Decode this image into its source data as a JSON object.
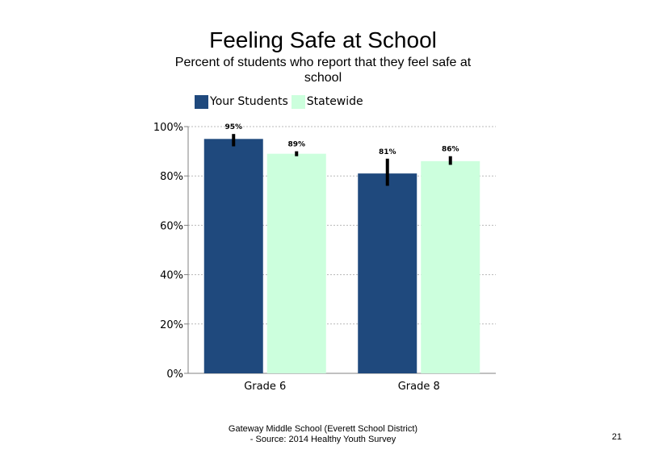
{
  "title": "Feeling Safe at School",
  "subtitle": "Percent of students  who report that they feel safe at school",
  "footer": {
    "line1": "Gateway Middle  School  (Everett School District)",
    "line2": "- Source: 2014 Healthy  Youth Survey"
  },
  "page_number": "21",
  "chart_data": {
    "type": "bar",
    "categories": [
      "Grade 6",
      "Grade 8"
    ],
    "series": [
      {
        "name": "Your Students",
        "color": "#1f497d",
        "values": [
          95,
          81
        ],
        "value_labels": [
          "95%",
          "81%"
        ],
        "error_low": [
          92,
          76
        ],
        "error_high": [
          97,
          87
        ]
      },
      {
        "name": "Statewide",
        "color": "#ccffdd",
        "values": [
          89,
          86
        ],
        "value_labels": [
          "89%",
          "86%"
        ],
        "error_low": [
          88,
          84.5
        ],
        "error_high": [
          90,
          88
        ]
      }
    ],
    "ylim": [
      0,
      100
    ],
    "yticks": [
      0,
      20,
      40,
      60,
      80,
      100
    ],
    "ytick_labels": [
      "0%",
      "20%",
      "40%",
      "60%",
      "80%",
      "100%"
    ],
    "grid": true,
    "legend_position": "top-left",
    "xlabel": "",
    "ylabel": ""
  }
}
